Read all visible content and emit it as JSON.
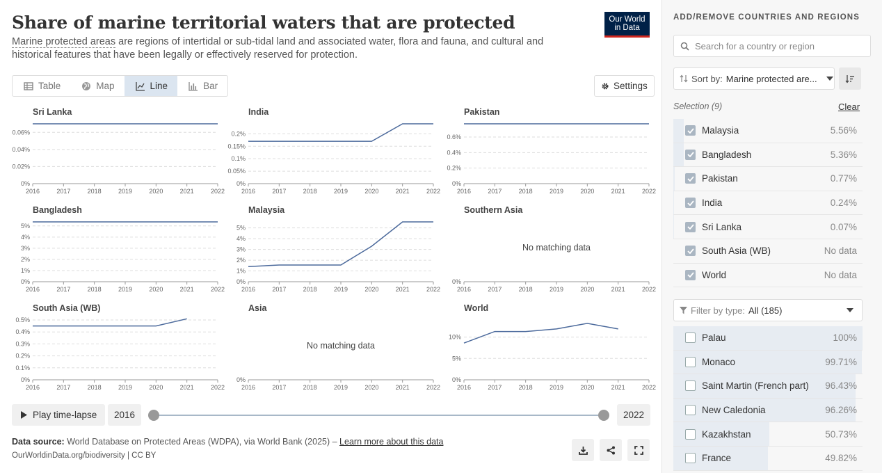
{
  "header": {
    "title": "Share of marine territorial waters that are protected",
    "subtitle_link": "Marine protected areas",
    "subtitle_rest": " are regions of intertidal or sub-tidal land and associated water, flora and fauna, and cultural and historical features that have been legally or effectively reserved for protection.",
    "logo_line1": "Our World",
    "logo_line2": "in Data"
  },
  "tabs": [
    {
      "label": "Table",
      "icon": "table-icon",
      "active": false
    },
    {
      "label": "Map",
      "icon": "globe-icon",
      "active": false
    },
    {
      "label": "Line",
      "icon": "line-chart-icon",
      "active": true
    },
    {
      "label": "Bar",
      "icon": "bar-chart-icon",
      "active": false
    }
  ],
  "settings_label": "Settings",
  "no_data_label": "No matching data",
  "chart_data": [
    {
      "type": "line",
      "title": "Sri Lanka",
      "x": [
        2016,
        2017,
        2018,
        2019,
        2020,
        2021,
        2022
      ],
      "values": [
        0.07,
        0.07,
        0.07,
        0.07,
        0.07,
        0.07,
        0.07
      ],
      "yticks": [
        0,
        0.02,
        0.04,
        0.06
      ],
      "ylim": [
        0,
        0.07
      ],
      "unit": "%",
      "xticks": [
        2016,
        2017,
        2018,
        2019,
        2020,
        2021,
        2022
      ]
    },
    {
      "type": "line",
      "title": "India",
      "x": [
        2016,
        2017,
        2018,
        2019,
        2020,
        2021,
        2022
      ],
      "values": [
        0.17,
        0.17,
        0.17,
        0.17,
        0.17,
        0.24,
        0.24
      ],
      "yticks": [
        0,
        0.05,
        0.1,
        0.15,
        0.2
      ],
      "ylim": [
        0,
        0.24
      ],
      "unit": "%",
      "xticks": [
        2016,
        2017,
        2018,
        2019,
        2020,
        2021,
        2022
      ]
    },
    {
      "type": "line",
      "title": "Pakistan",
      "x": [
        2016,
        2017,
        2018,
        2019,
        2020,
        2021,
        2022
      ],
      "values": [
        0.77,
        0.77,
        0.77,
        0.77,
        0.77,
        0.77,
        0.77
      ],
      "yticks": [
        0,
        0.2,
        0.4,
        0.6
      ],
      "ylim": [
        0,
        0.77
      ],
      "unit": "%",
      "xticks": [
        2016,
        2017,
        2018,
        2019,
        2020,
        2021,
        2022
      ]
    },
    {
      "type": "line",
      "title": "Bangladesh",
      "x": [
        2016,
        2017,
        2018,
        2019,
        2020,
        2021,
        2022
      ],
      "values": [
        5.36,
        5.36,
        5.36,
        5.36,
        5.36,
        5.36,
        5.36
      ],
      "yticks": [
        0,
        1,
        2,
        3,
        4,
        5
      ],
      "ylim": [
        0,
        5.36
      ],
      "unit": "%",
      "xticks": [
        2016,
        2017,
        2018,
        2019,
        2020,
        2021,
        2022
      ]
    },
    {
      "type": "line",
      "title": "Malaysia",
      "x": [
        2016,
        2017,
        2018,
        2019,
        2020,
        2021,
        2022
      ],
      "values": [
        1.4,
        1.55,
        1.55,
        1.55,
        3.3,
        5.56,
        5.56
      ],
      "yticks": [
        0,
        1,
        2,
        3,
        4,
        5
      ],
      "ylim": [
        0,
        5.56
      ],
      "unit": "%",
      "xticks": [
        2016,
        2017,
        2018,
        2019,
        2020,
        2021,
        2022
      ]
    },
    {
      "type": "line",
      "title": "Southern Asia",
      "x": [],
      "values": [],
      "yticks": [
        0
      ],
      "ylim": [
        0,
        1
      ],
      "unit": "%",
      "nodata": true,
      "xticks": [
        2016,
        2017,
        2018,
        2019,
        2020,
        2021,
        2022
      ]
    },
    {
      "type": "line",
      "title": "South Asia (WB)",
      "x": [
        2016,
        2017,
        2018,
        2019,
        2020,
        2021
      ],
      "values": [
        0.45,
        0.45,
        0.45,
        0.45,
        0.45,
        0.51
      ],
      "yticks": [
        0,
        0.1,
        0.2,
        0.3,
        0.4,
        0.5
      ],
      "ylim": [
        0,
        0.5
      ],
      "unit": "%",
      "xticks": [
        2016,
        2017,
        2018,
        2019,
        2020,
        2021,
        2022
      ]
    },
    {
      "type": "line",
      "title": "Asia",
      "x": [],
      "values": [],
      "yticks": [
        0
      ],
      "ylim": [
        0,
        1
      ],
      "unit": "%",
      "nodata": true,
      "xticks": [
        2016,
        2017,
        2018,
        2019,
        2020,
        2021,
        2022
      ]
    },
    {
      "type": "line",
      "title": "World",
      "x": [
        2016,
        2017,
        2018,
        2019,
        2020,
        2021
      ],
      "values": [
        8.6,
        11.3,
        11.3,
        11.9,
        13.2,
        11.9
      ],
      "yticks": [
        0,
        5,
        10
      ],
      "ylim": [
        0,
        14
      ],
      "unit": "%",
      "xticks": [
        2016,
        2017,
        2018,
        2019,
        2020,
        2021,
        2022
      ]
    }
  ],
  "timeline": {
    "play_label": "Play time-lapse",
    "start_year": "2016",
    "end_year": "2022"
  },
  "footer": {
    "source_label": "Data source:",
    "source_text": " World Database on Protected Areas (WDPA), via World Bank (2025) – ",
    "learn_more": "Learn more about this data",
    "url": "OurWorldinData.org/biodiversity | CC BY"
  },
  "sidebar": {
    "heading": "ADD/REMOVE COUNTRIES AND REGIONS",
    "search_placeholder": "Search for a country or region",
    "sort_label": "Sort by:",
    "sort_value": "Marine protected are...",
    "selection_label": "Selection (9)",
    "clear_label": "Clear",
    "selected": [
      {
        "name": "Malaysia",
        "value": "5.56%",
        "share": 0.0556
      },
      {
        "name": "Bangladesh",
        "value": "5.36%",
        "share": 0.0536
      },
      {
        "name": "Pakistan",
        "value": "0.77%",
        "share": 0.0077
      },
      {
        "name": "India",
        "value": "0.24%",
        "share": 0.0024
      },
      {
        "name": "Sri Lanka",
        "value": "0.07%",
        "share": 0.0007
      },
      {
        "name": "South Asia (WB)",
        "value": "No data",
        "share": 0
      },
      {
        "name": "World",
        "value": "No data",
        "share": 0
      }
    ],
    "filter_label": "Filter by type:",
    "filter_value": "All (185)",
    "others": [
      {
        "name": "Palau",
        "value": "100%",
        "share": 1.0
      },
      {
        "name": "Monaco",
        "value": "99.71%",
        "share": 0.9971
      },
      {
        "name": "Saint Martin (French part)",
        "value": "96.43%",
        "share": 0.9643
      },
      {
        "name": "New Caledonia",
        "value": "96.26%",
        "share": 0.9626
      },
      {
        "name": "Kazakhstan",
        "value": "50.73%",
        "share": 0.5073
      },
      {
        "name": "France",
        "value": "49.82%",
        "share": 0.4982
      }
    ]
  }
}
